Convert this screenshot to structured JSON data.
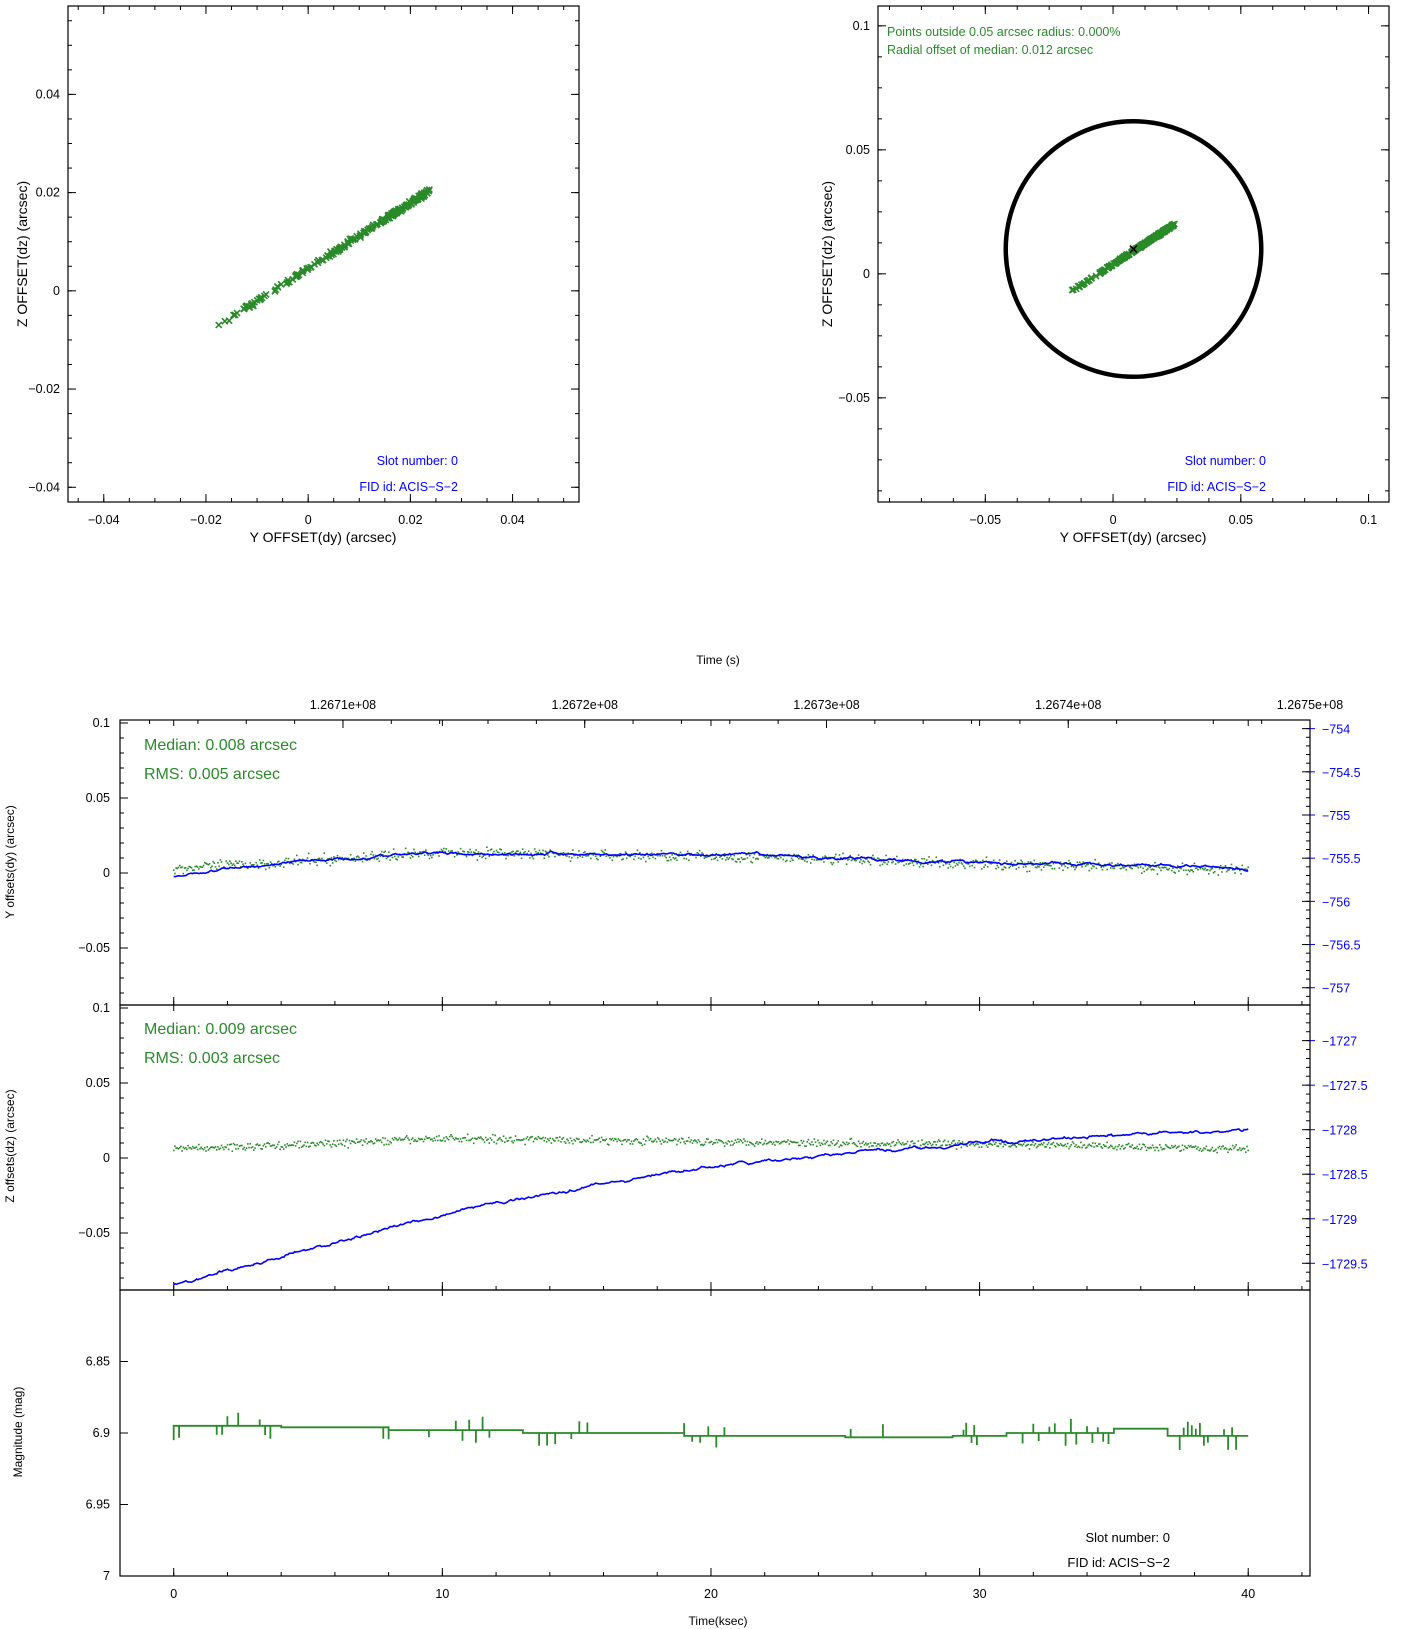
{
  "colors": {
    "green": "#2a8a2a",
    "blue": "#0000ff",
    "black": "#000000"
  },
  "chart_data": [
    {
      "id": "scatter-left",
      "type": "scatter",
      "xlabel": "Y OFFSET(dy) (arcsec)",
      "ylabel": "Z OFFSET(dz) (arcsec)",
      "xlim": [
        -0.047,
        0.053
      ],
      "ylim": [
        -0.043,
        0.058
      ],
      "xticks": [
        -0.04,
        -0.02,
        0,
        0.02,
        0.04
      ],
      "xtick_labels": [
        "−0.04",
        "−0.02",
        "0",
        "0.02",
        "0.04"
      ],
      "yticks": [
        -0.04,
        -0.02,
        0,
        0.02,
        0.04
      ],
      "ytick_labels": [
        "−0.04",
        "−0.02",
        "0",
        "0.02",
        "0.04"
      ],
      "series": [
        {
          "marker": "x",
          "color": "#2a8a2a",
          "points_from": [
            -0.0175,
            -0.007
          ],
          "points_to": [
            0.024,
            0.0205
          ]
        }
      ],
      "annotations": [
        "Slot number: 0",
        "FID id: ACIS−S−2"
      ]
    },
    {
      "id": "scatter-right",
      "type": "scatter",
      "xlabel": "Y OFFSET(dy) (arcsec)",
      "ylabel": "Z OFFSET(dz) (arcsec)",
      "xlim": [
        -0.092,
        0.108
      ],
      "ylim": [
        -0.092,
        0.108
      ],
      "xticks": [
        -0.05,
        0,
        0.05,
        0.1
      ],
      "xtick_labels": [
        "−0.05",
        "0",
        "0.05",
        "0.1"
      ],
      "yticks": [
        -0.05,
        0,
        0.05,
        0.1
      ],
      "ytick_labels": [
        "−0.05",
        "0",
        "0.05",
        "0.1"
      ],
      "circle": {
        "center": [
          0.008,
          0.01
        ],
        "radius": 0.05,
        "color": "#000000"
      },
      "median_marker": [
        0.008,
        0.01
      ],
      "series": [
        {
          "marker": "x",
          "color": "#2a8a2a",
          "points_from": [
            -0.016,
            -0.007
          ],
          "points_to": [
            0.024,
            0.02
          ]
        }
      ],
      "notes": [
        "Points outside 0.05 arcsec radius: 0.000%",
        "Radial offset of median: 0.012 arcsec"
      ],
      "annotations": [
        "Slot number: 0",
        "FID id: ACIS−S−2"
      ]
    },
    {
      "id": "y-offsets",
      "type": "line",
      "top_axis_title": "Time (s)",
      "top_ticks": [
        "1.2671e+08",
        "1.2672e+08",
        "1.2673e+08",
        "1.2674e+08",
        "1.2675e+08"
      ],
      "top_tick_positions_ksec": [
        6.3,
        15.3,
        24.3,
        33.3,
        42.3
      ],
      "ylabel": "Y offsets(dy) (arcsec)",
      "xlim": [
        -2,
        42.3
      ],
      "ylim": [
        -0.088,
        0.102
      ],
      "yticks": [
        -0.05,
        0,
        0.05,
        0.1
      ],
      "ytick_labels": [
        "−0.05",
        "0",
        "0.05",
        "0.1"
      ],
      "right_ylim": [
        -757.2,
        -753.9
      ],
      "right_ticks": [
        -757,
        -756.5,
        -756,
        -755.5,
        -755,
        -754.5,
        -754
      ],
      "right_tick_labels": [
        "−757",
        "−756.5",
        "−756",
        "−755.5",
        "−755",
        "−754.5",
        "−754"
      ],
      "notes": [
        "Median: 0.008 arcsec",
        "RMS: 0.005 arcsec"
      ],
      "series": [
        {
          "axis": "left",
          "color": "#2a8a2a",
          "style": "dots",
          "trend_x": [
            0,
            5,
            10,
            15,
            20,
            25,
            30,
            35,
            40
          ],
          "trend_y": [
            0.003,
            0.008,
            0.014,
            0.012,
            0.011,
            0.009,
            0.006,
            0.004,
            0.002
          ]
        },
        {
          "axis": "right",
          "color": "#0000ff",
          "style": "line",
          "trend_x": [
            0,
            5,
            10,
            15,
            20,
            25,
            30,
            35,
            40
          ],
          "trend_y": [
            -755.7,
            -755.52,
            -755.44,
            -755.45,
            -755.46,
            -755.5,
            -755.54,
            -755.58,
            -755.62
          ]
        }
      ]
    },
    {
      "id": "z-offsets",
      "type": "line",
      "ylabel": "Z offsets(dz) (arcsec)",
      "xlim": [
        -2,
        42.3
      ],
      "ylim": [
        -0.088,
        0.102
      ],
      "yticks": [
        -0.05,
        0,
        0.05,
        0.1
      ],
      "ytick_labels": [
        "−0.05",
        "0",
        "0.05",
        "0.1"
      ],
      "right_ylim": [
        -1729.8,
        -1726.6
      ],
      "right_ticks": [
        -1729.5,
        -1729,
        -1728.5,
        -1728,
        -1727.5,
        -1727
      ],
      "right_tick_labels": [
        "−1729.5",
        "−1729",
        "−1728.5",
        "−1728",
        "−1727.5",
        "−1727"
      ],
      "notes": [
        "Median: 0.009 arcsec",
        "RMS: 0.003 arcsec"
      ],
      "series": [
        {
          "axis": "left",
          "color": "#2a8a2a",
          "style": "dots",
          "trend_x": [
            0,
            5,
            10,
            15,
            20,
            25,
            30,
            35,
            40
          ],
          "trend_y": [
            0.006,
            0.009,
            0.013,
            0.012,
            0.011,
            0.01,
            0.009,
            0.008,
            0.006
          ]
        },
        {
          "axis": "right",
          "color": "#0000ff",
          "style": "line",
          "trend_x": [
            0,
            5,
            10,
            15,
            20,
            25,
            30,
            35,
            40
          ],
          "trend_y": [
            -1729.75,
            -1729.35,
            -1728.95,
            -1728.65,
            -1728.42,
            -1728.27,
            -1728.15,
            -1728.07,
            -1728.0
          ]
        }
      ]
    },
    {
      "id": "magnitude",
      "type": "line",
      "ylabel": "Magnitude (mag)",
      "xlabel": "Time(ksec)",
      "xlim": [
        -2,
        42.3
      ],
      "xticks": [
        0,
        10,
        20,
        30,
        40
      ],
      "xtick_labels": [
        "0",
        "10",
        "20",
        "30",
        "40"
      ],
      "ylim": [
        7.0,
        6.8
      ],
      "yticks": [
        6.85,
        6.9,
        6.95,
        7
      ],
      "ytick_labels": [
        "6.85",
        "6.9",
        "6.95",
        "7"
      ],
      "series": [
        {
          "color": "#2a8a2a",
          "style": "step",
          "steps": [
            [
              0,
              6.895
            ],
            [
              4,
              6.896
            ],
            [
              8,
              6.898
            ],
            [
              13,
              6.9
            ],
            [
              19,
              6.902
            ],
            [
              25,
              6.903
            ],
            [
              29,
              6.902
            ],
            [
              31,
              6.9
            ],
            [
              35,
              6.897
            ],
            [
              37,
              6.902
            ],
            [
              40,
              6.902
            ]
          ],
          "spike_regions": [
            [
              0,
              0.3
            ],
            [
              1.5,
              3.8
            ],
            [
              7.7,
              8.2
            ],
            [
              9.5,
              11.8
            ],
            [
              13.3,
              15.5
            ],
            [
              18.8,
              20.6
            ],
            [
              25.2,
              26.5
            ],
            [
              29.4,
              29.9
            ],
            [
              31.6,
              34.8
            ],
            [
              37.2,
              39.6
            ]
          ]
        }
      ],
      "annotations": [
        "Slot number: 0",
        "FID id: ACIS−S−2"
      ]
    }
  ]
}
